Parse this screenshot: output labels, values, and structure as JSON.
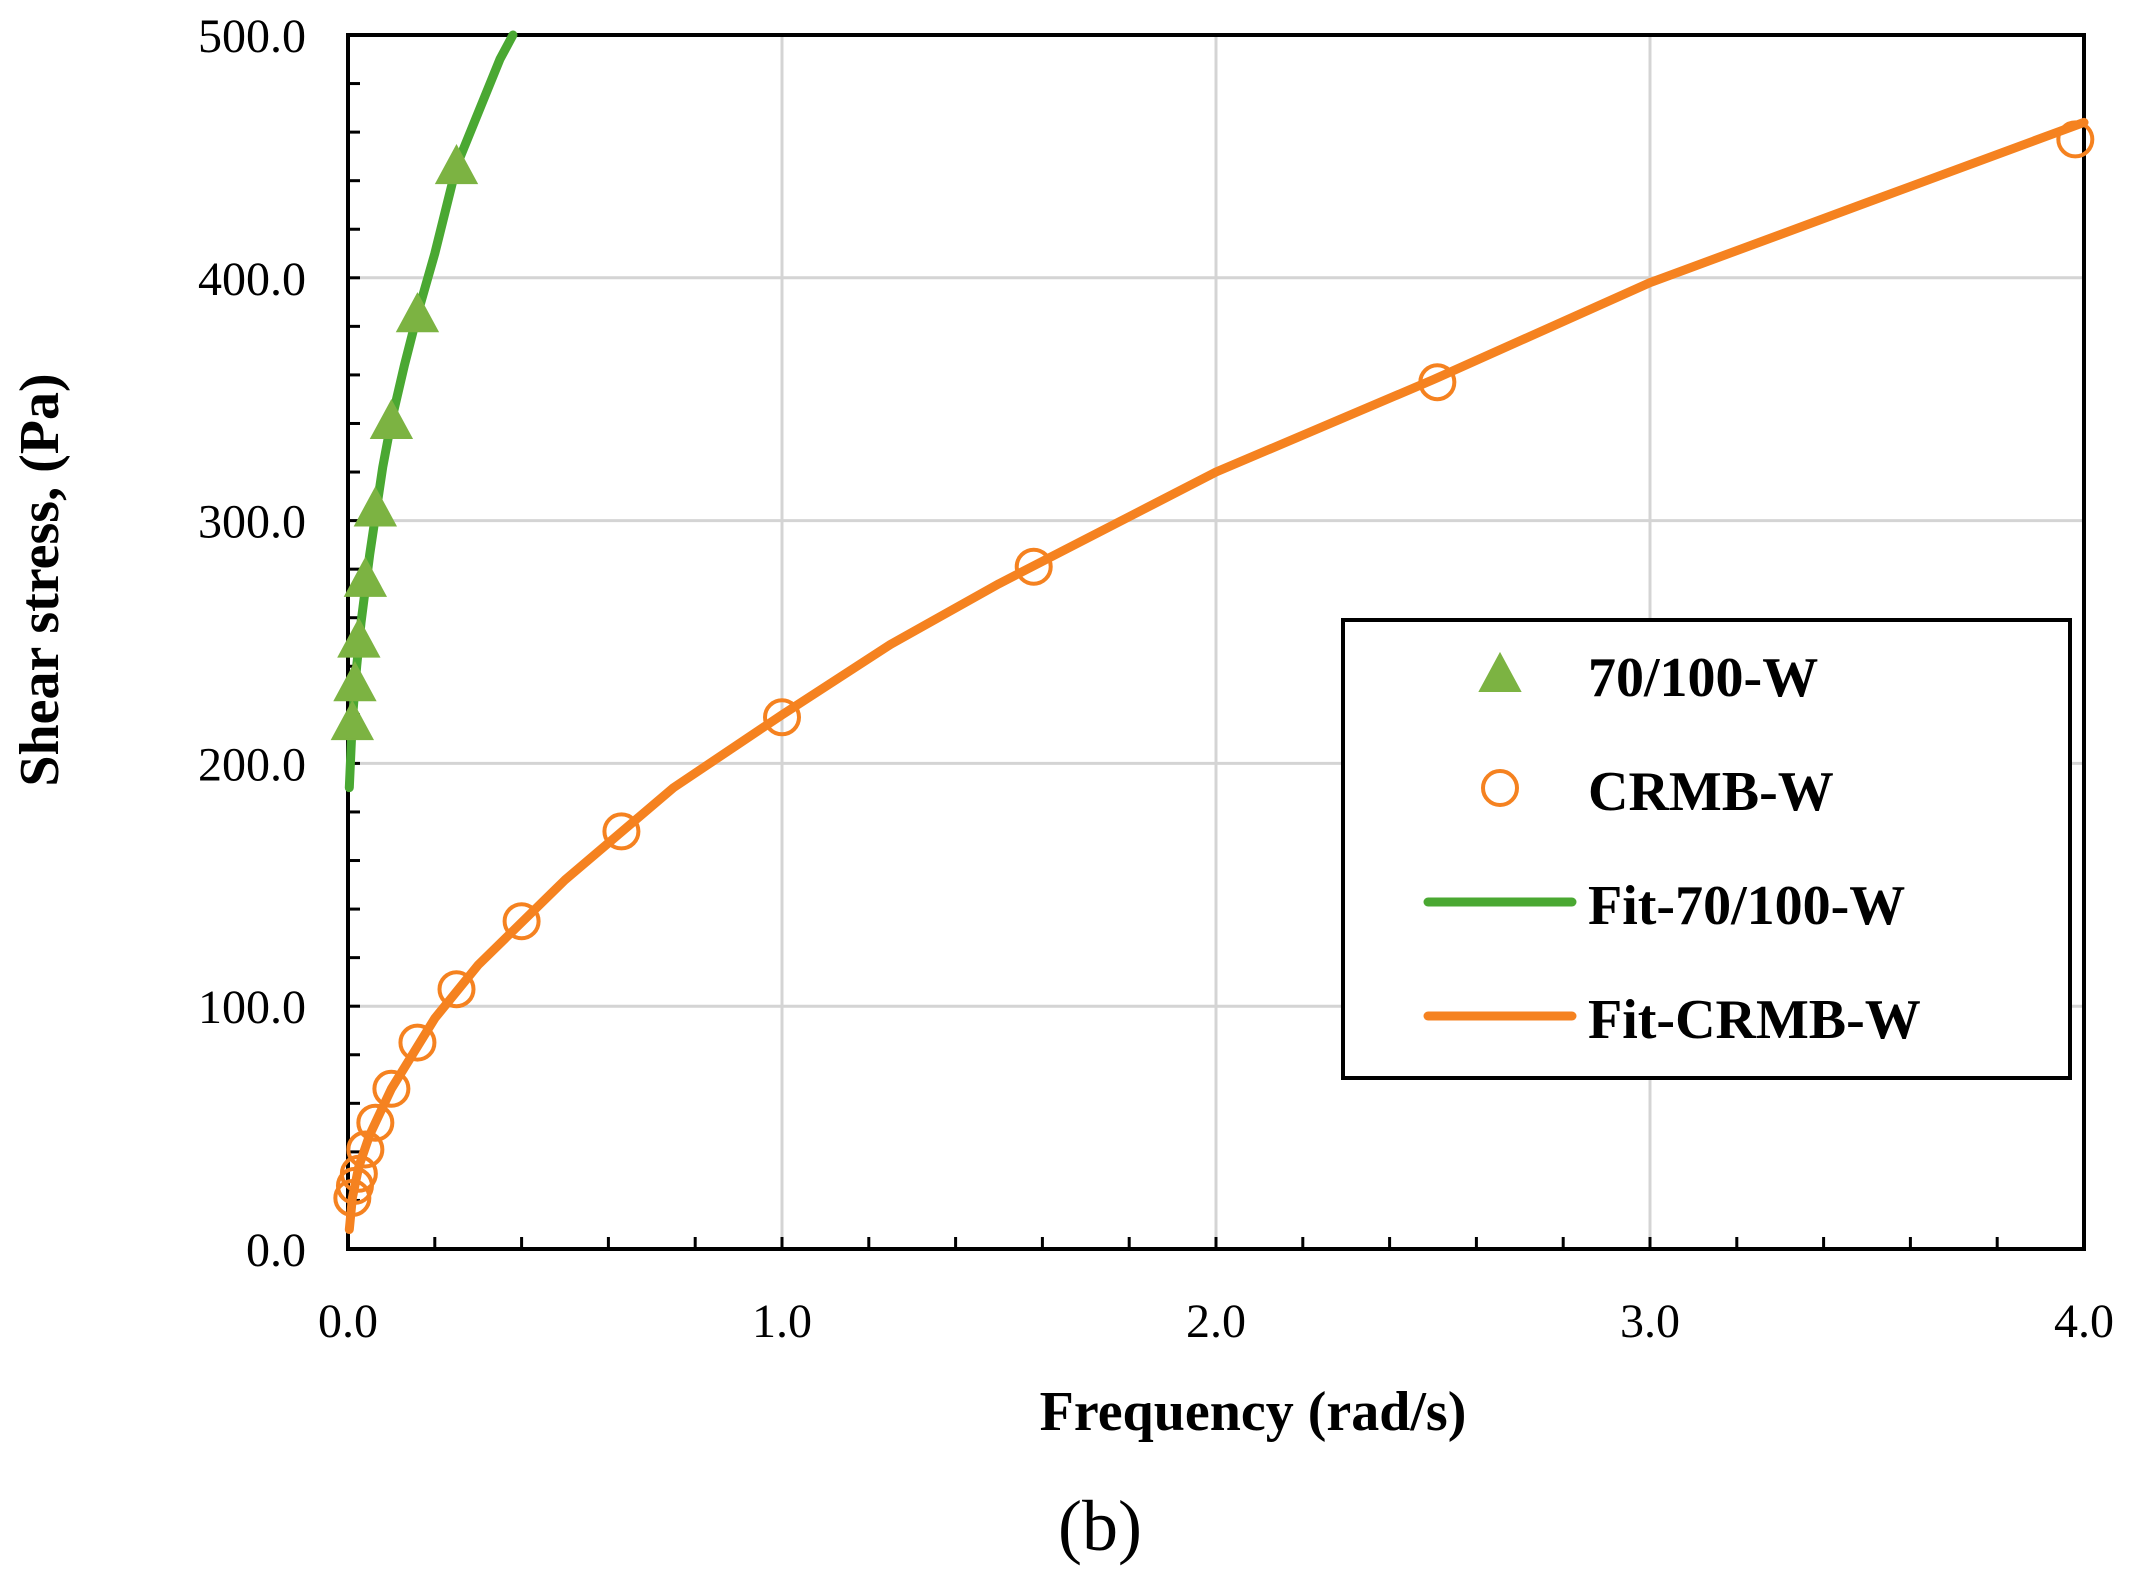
{
  "chart_data": {
    "type": "scatter",
    "title": "",
    "caption": "(b)",
    "xlabel": "Frequency (rad/s)",
    "ylabel": "Shear stress, (Pa)",
    "xlim": [
      0,
      4
    ],
    "ylim": [
      0,
      500
    ],
    "xticks": [
      "0.0",
      "1.0",
      "2.0",
      "3.0",
      "4.0"
    ],
    "yticks": [
      "0.0",
      "100.0",
      "200.0",
      "300.0",
      "400.0",
      "500.0"
    ],
    "grid": true,
    "legend_position": "right",
    "colors": {
      "green": "#4aa832",
      "green_marker": "#7cb342",
      "orange": "#f58220"
    },
    "series": [
      {
        "name": "70/100-W",
        "kind": "markers",
        "marker": "triangle",
        "x": [
          0.01,
          0.016,
          0.025,
          0.04,
          0.063,
          0.1,
          0.16,
          0.25
        ],
        "y": [
          217,
          233,
          251,
          276,
          305,
          341,
          385,
          446
        ]
      },
      {
        "name": "CRMB-W",
        "kind": "markers",
        "marker": "circle-open",
        "x": [
          0.01,
          0.016,
          0.025,
          0.04,
          0.063,
          0.1,
          0.16,
          0.25,
          0.4,
          0.63,
          1.0,
          1.58,
          2.51,
          3.98
        ],
        "y": [
          21,
          26,
          31,
          41,
          52,
          66,
          85,
          107,
          135,
          172,
          219,
          281,
          357,
          457
        ]
      },
      {
        "name": "Fit-70/100-W",
        "kind": "line",
        "x": [
          0.003,
          0.01,
          0.02,
          0.03,
          0.05,
          0.08,
          0.1,
          0.13,
          0.16,
          0.2,
          0.25,
          0.3,
          0.35,
          0.38
        ],
        "y": [
          190,
          218,
          240,
          258,
          286,
          322,
          341,
          364,
          385,
          410,
          446,
          468,
          490,
          500
        ]
      },
      {
        "name": "Fit-CRMB-W",
        "kind": "line",
        "x": [
          0.003,
          0.01,
          0.025,
          0.05,
          0.1,
          0.2,
          0.3,
          0.5,
          0.75,
          1.0,
          1.25,
          1.5,
          2.0,
          2.5,
          3.0,
          3.5,
          4.0
        ],
        "y": [
          8,
          21,
          34,
          47,
          66,
          95,
          117,
          152,
          190,
          220,
          249,
          274,
          320,
          358,
          398,
          431,
          464
        ]
      }
    ]
  }
}
